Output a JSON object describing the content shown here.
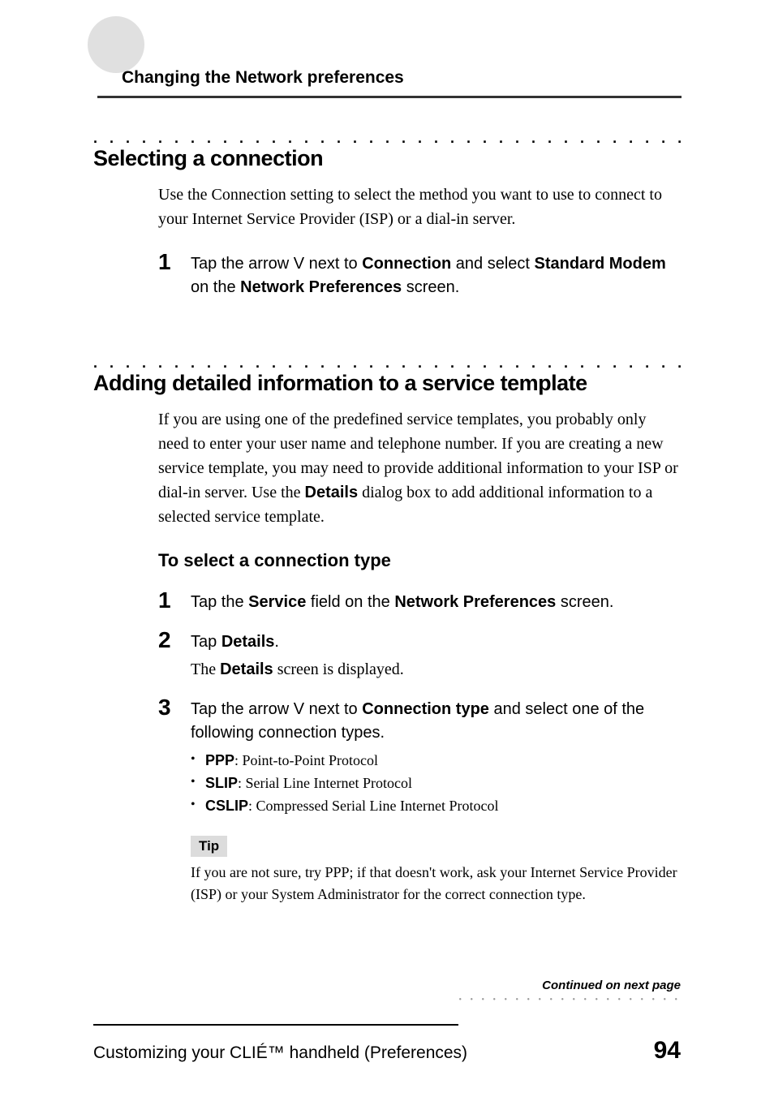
{
  "header": {
    "title": "Changing the Network preferences"
  },
  "section1": {
    "heading": "Selecting a connection",
    "para": "Use the Connection setting to select the method you want to use to connect to your Internet Service Provider (ISP) or a dial-in server.",
    "step1": {
      "num": "1",
      "pre": "Tap the arrow ",
      "arrow": "V",
      "mid1": " next to ",
      "b1": "Connection",
      "mid2": " and select ",
      "b2": "Standard Modem",
      "mid3": " on the ",
      "b3": "Network Preferences",
      "post": " screen."
    }
  },
  "section2": {
    "heading": "Adding detailed information to a service template",
    "para_pre": "If you are using one of the predefined service templates, you probably only need to enter your user name and telephone number. If you are creating a new service template, you may need to provide additional information to your ISP or dial-in server. Use the ",
    "para_bold": "Details",
    "para_post": " dialog box to add additional information to a selected service template.",
    "subheading": "To select a connection type",
    "step1": {
      "num": "1",
      "pre": "Tap the ",
      "b1": "Service",
      "mid": " field on the ",
      "b2": "Network Preferences",
      "post": " screen."
    },
    "step2": {
      "num": "2",
      "pre": "Tap ",
      "b1": "Details",
      "post": ".",
      "sub_pre": "The ",
      "sub_b": "Details",
      "sub_post": " screen is displayed."
    },
    "step3": {
      "num": "3",
      "pre": "Tap the arrow ",
      "arrow": "V",
      "mid1": " next to ",
      "b1": "Connection type",
      "post": " and select one of the following connection types.",
      "bullets": [
        {
          "b": "PPP",
          "t": ": Point-to-Point Protocol"
        },
        {
          "b": "SLIP",
          "t": ": Serial Line Internet Protocol"
        },
        {
          "b": "CSLIP",
          "t": ": Compressed Serial Line Internet Protocol"
        }
      ]
    },
    "tip": {
      "label": "Tip",
      "text": "If you are not sure, try PPP; if that doesn't work, ask your Internet Service Provider (ISP) or your System Administrator for the correct connection type."
    }
  },
  "footer": {
    "continued": "Continued on next page",
    "text": "Customizing your CLIÉ™ handheld (Preferences)",
    "page": "94"
  },
  "style": {
    "background": "#ffffff",
    "accent_gray": "#dcdcdc",
    "header_bullet_color": "#e0e0e0",
    "body_fontsize": 20,
    "heading_fontsize": 27,
    "step_num_fontsize": 28,
    "page_num_fontsize": 30
  }
}
